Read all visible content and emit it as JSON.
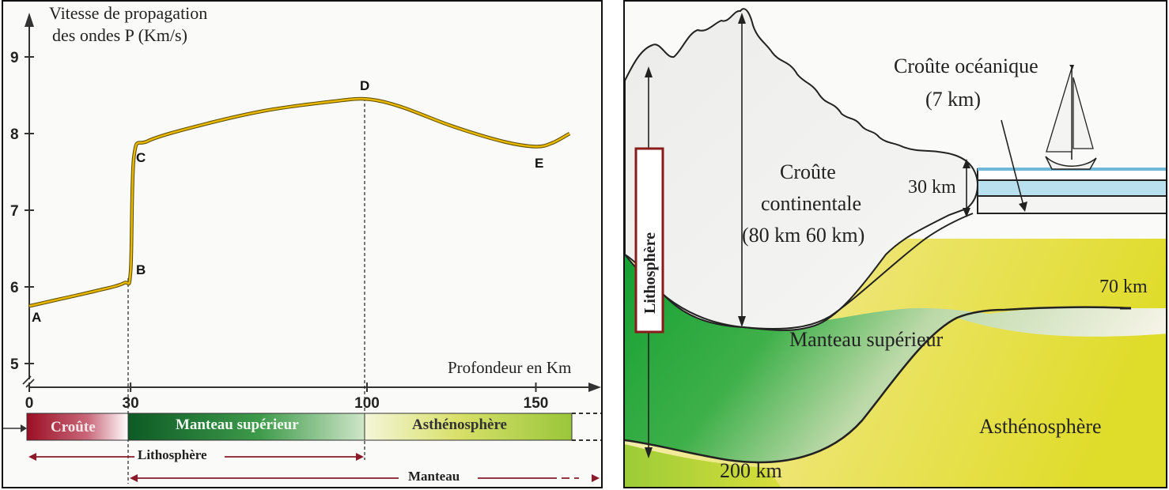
{
  "graph": {
    "title_line1": "Vitesse de propagation",
    "title_line2": "des ondes P (Km/s)",
    "xlabel": "Profondeur en Km",
    "y_ticks": [
      "9",
      "8",
      "7",
      "6",
      "5"
    ],
    "x_ticks": [
      "0",
      "30",
      "100",
      "150"
    ],
    "point_labels": [
      "A",
      "B",
      "C",
      "D",
      "E"
    ],
    "layers": {
      "croute": "Croûte",
      "manteau_sup": "Manteau supérieur",
      "astheno": "Asthénosphère"
    },
    "brackets": {
      "lithosphere": "Lithosphère",
      "manteau": "Manteau"
    }
  },
  "chart_data": {
    "type": "line",
    "xlabel": "Profondeur en Km",
    "ylabel": "Vitesse de propagation des ondes P (Km/s)",
    "xlim": [
      0,
      160
    ],
    "ylim": [
      5,
      9
    ],
    "series": [
      {
        "x": [
          0,
          10,
          20,
          28,
          30,
          31,
          35,
          50,
          70,
          90,
          100,
          110,
          125,
          140,
          150,
          155,
          160
        ],
        "y": [
          5.75,
          5.85,
          5.95,
          6.05,
          6.2,
          7.7,
          7.9,
          8.1,
          8.3,
          8.42,
          8.45,
          8.35,
          8.1,
          7.9,
          7.83,
          7.88,
          8.0
        ]
      }
    ],
    "points": [
      {
        "label": "A",
        "x": 0,
        "y": 5.75
      },
      {
        "label": "B",
        "x": 30,
        "y": 6.2
      },
      {
        "label": "C",
        "x": 31,
        "y": 7.7
      },
      {
        "label": "D",
        "x": 100,
        "y": 8.45
      },
      {
        "label": "E",
        "x": 150,
        "y": 7.83
      }
    ]
  },
  "section": {
    "croute_oceanique": "Croûte océanique",
    "croute_oceanique_thickness": "(7 km)",
    "croute_continentale_1": "Croûte",
    "croute_continentale_2": "continentale",
    "croute_continentale_3": "(80 km  60 km)",
    "thickness_30": "30 km",
    "depth_70": "70 km",
    "depth_200": "200 km",
    "manteau_superieur": "Manteau supérieur",
    "asthenosphere": "Asthénosphère",
    "lithosphere": "Lithosphère"
  },
  "colors": {
    "curve": "#e8b800",
    "croute": "#a3162c",
    "manteau": "#1f7a34",
    "astheno": "#d6d84a",
    "frame": "#111111"
  }
}
